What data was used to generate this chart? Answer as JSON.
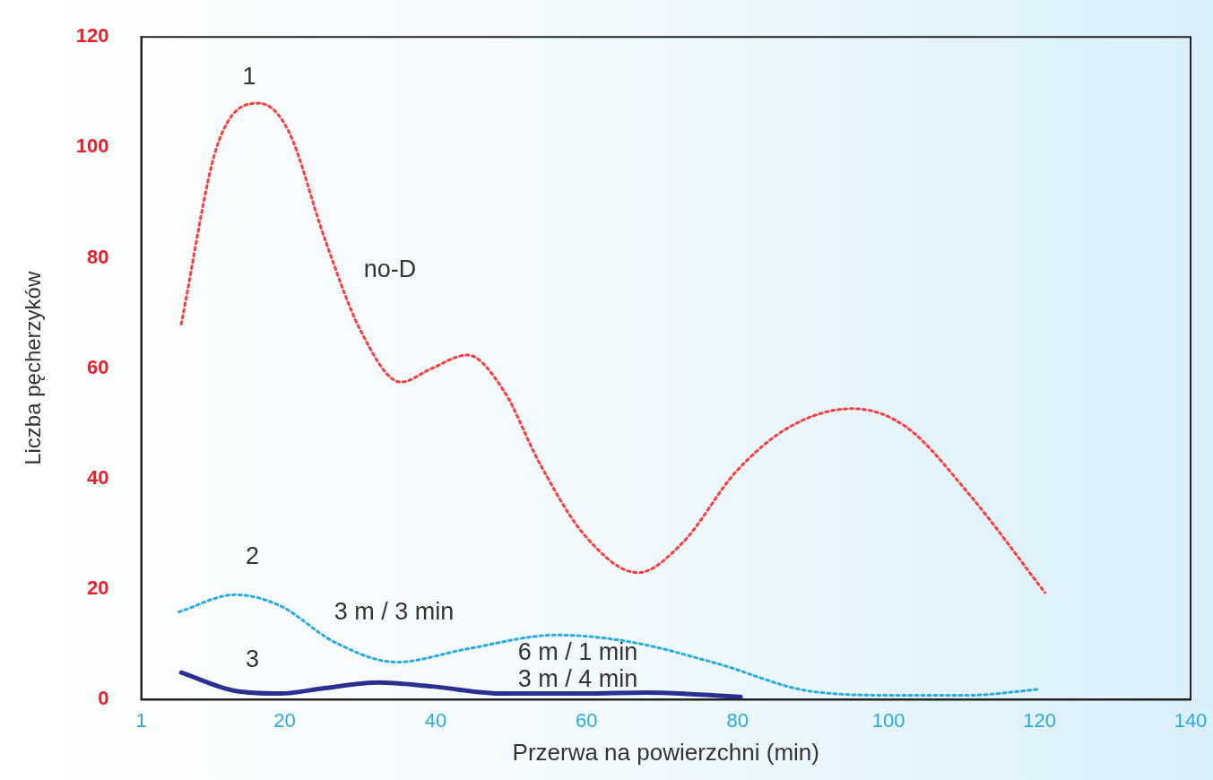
{
  "chart_data": {
    "type": "line",
    "xlabel": "Przerwa na powierzchni (min)",
    "ylabel": "Liczba pęcherzyków",
    "xlim": [
      1,
      140
    ],
    "xticks": [
      1,
      20,
      40,
      60,
      80,
      100,
      120,
      140
    ],
    "ylim": [
      0,
      120
    ],
    "yticks": [
      0,
      20,
      40,
      60,
      80,
      100,
      120
    ],
    "grid": false,
    "legend": false,
    "marker": "none",
    "series": [
      {
        "color": "#ff3b3b",
        "line_style": "dotted",
        "x": [
          6.3,
          11,
          16.6,
          20.5,
          25.3,
          30,
          35.4,
          39.5,
          44.2,
          49,
          53.7,
          59.6,
          66.8,
          72.7,
          79.8,
          86.9,
          95.2,
          102.3,
          110.6,
          120.7
        ],
        "values": [
          68,
          100,
          108,
          103,
          83.5,
          67,
          57.5,
          60,
          62.4,
          56,
          43,
          30,
          23,
          28.4,
          41.3,
          49.4,
          52.7,
          49.4,
          37.3,
          19.4
        ]
      },
      {
        "color": "#29abe2",
        "line_style": "dotted",
        "x": [
          6,
          13.4,
          19.4,
          26.5,
          34.8,
          44.2,
          56,
          65.6,
          77.4,
          89.3,
          101,
          110.6,
          120
        ],
        "values": [
          15.9,
          19,
          17,
          10.5,
          6.8,
          9.2,
          11.7,
          10.5,
          6.5,
          1.6,
          0.8,
          0.8,
          1.9
        ]
      },
      {
        "color": "#2b2f8f",
        "line_style": "solid",
        "x": [
          6.3,
          13.4,
          19.4,
          25.3,
          32.4,
          39.5,
          49,
          59.6,
          67.9,
          80.4
        ],
        "values": [
          4.9,
          1.6,
          1.1,
          2.1,
          3.1,
          2.4,
          1.1,
          1.1,
          1.3,
          0.5
        ]
      }
    ],
    "annotations": [
      "1",
      "no-D",
      "2",
      "3 m / 3 min",
      "3",
      "6 m / 1 min",
      "3 m / 4 min"
    ]
  }
}
